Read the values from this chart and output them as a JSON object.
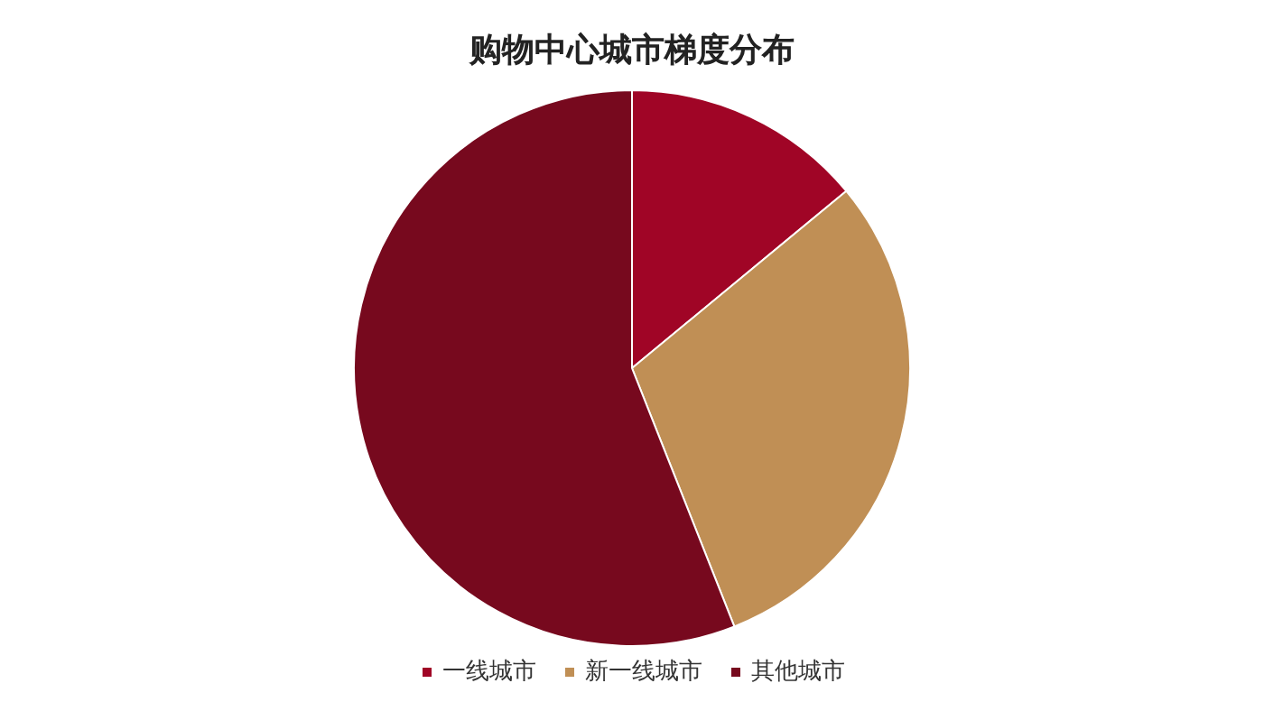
{
  "chart_data": {
    "type": "pie",
    "title": "购物中心城市梯度分布",
    "categories": [
      "一线城市",
      "新一线城市",
      "其他城市"
    ],
    "values": [
      14,
      30,
      56
    ],
    "colors": [
      "#a00526",
      "#c08f55",
      "#77091e"
    ],
    "legend": "bottom"
  }
}
